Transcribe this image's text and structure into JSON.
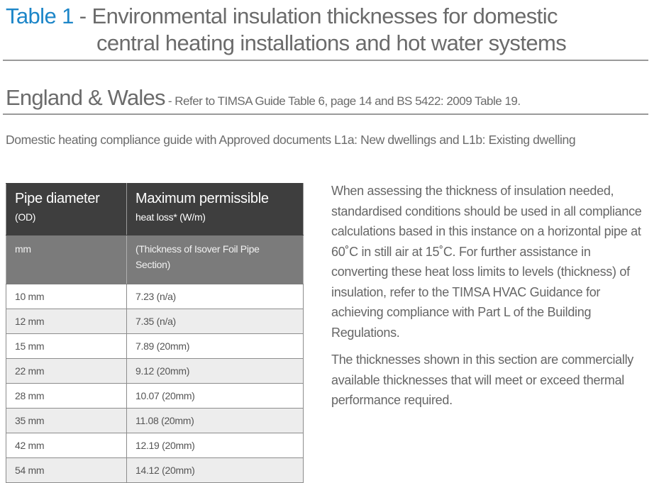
{
  "title": {
    "label": "Table 1",
    "separator": " - ",
    "line1": "Environmental insulation thicknesses for domestic",
    "line2": "central heating installations and hot water systems"
  },
  "region": {
    "name": "England & Wales",
    "reference": " - Refer to TIMSA Guide Table 6, page 14 and BS 5422: 2009 Table 19."
  },
  "intro": "Domestic heating compliance guide with Approved documents L1a: New dwellings and L1b: Existing dwelling",
  "table": {
    "headers": {
      "col1_title": "Pipe diameter",
      "col1_sub": "(OD)",
      "col2_title": "Maximum permissible",
      "col2_sub": "heat loss* (W/m)",
      "col1_unit": "mm",
      "col2_unit": "(Thickness of Isover Foil Pipe Section)"
    },
    "rows": [
      {
        "diameter": "10 mm",
        "value": "7.23 (n/a)"
      },
      {
        "diameter": "12 mm",
        "value": "7.35 (n/a)"
      },
      {
        "diameter": "15 mm",
        "value": "7.89 (20mm)"
      },
      {
        "diameter": "22 mm",
        "value": "9.12 (20mm)"
      },
      {
        "diameter": "28 mm",
        "value": "10.07 (20mm)"
      },
      {
        "diameter": "35 mm",
        "value": "11.08 (20mm)"
      },
      {
        "diameter": "42 mm",
        "value": "12.19 (20mm)"
      },
      {
        "diameter": "54 mm",
        "value": "14.12 (20mm)"
      }
    ]
  },
  "side_text": [
    "When assessing the thickness of insulation needed, standardised conditions should be used in all compliance calculations based in this instance on a horizontal pipe at 60˚C in still air at 15˚C. For further assistance in converting these heat loss limits to levels (thickness) of insulation, refer to the TIMSA HVAC Guidance for achieving compliance with Part L of the Building Regulations.",
    "The thicknesses shown in this section are commercially available thicknesses that will meet or exceed thermal performance required."
  ],
  "colors": {
    "accent": "#1d86c8",
    "header_dark": "#3e3e3e",
    "header_mid": "#7b7b7b",
    "row_alt": "#ededed"
  }
}
